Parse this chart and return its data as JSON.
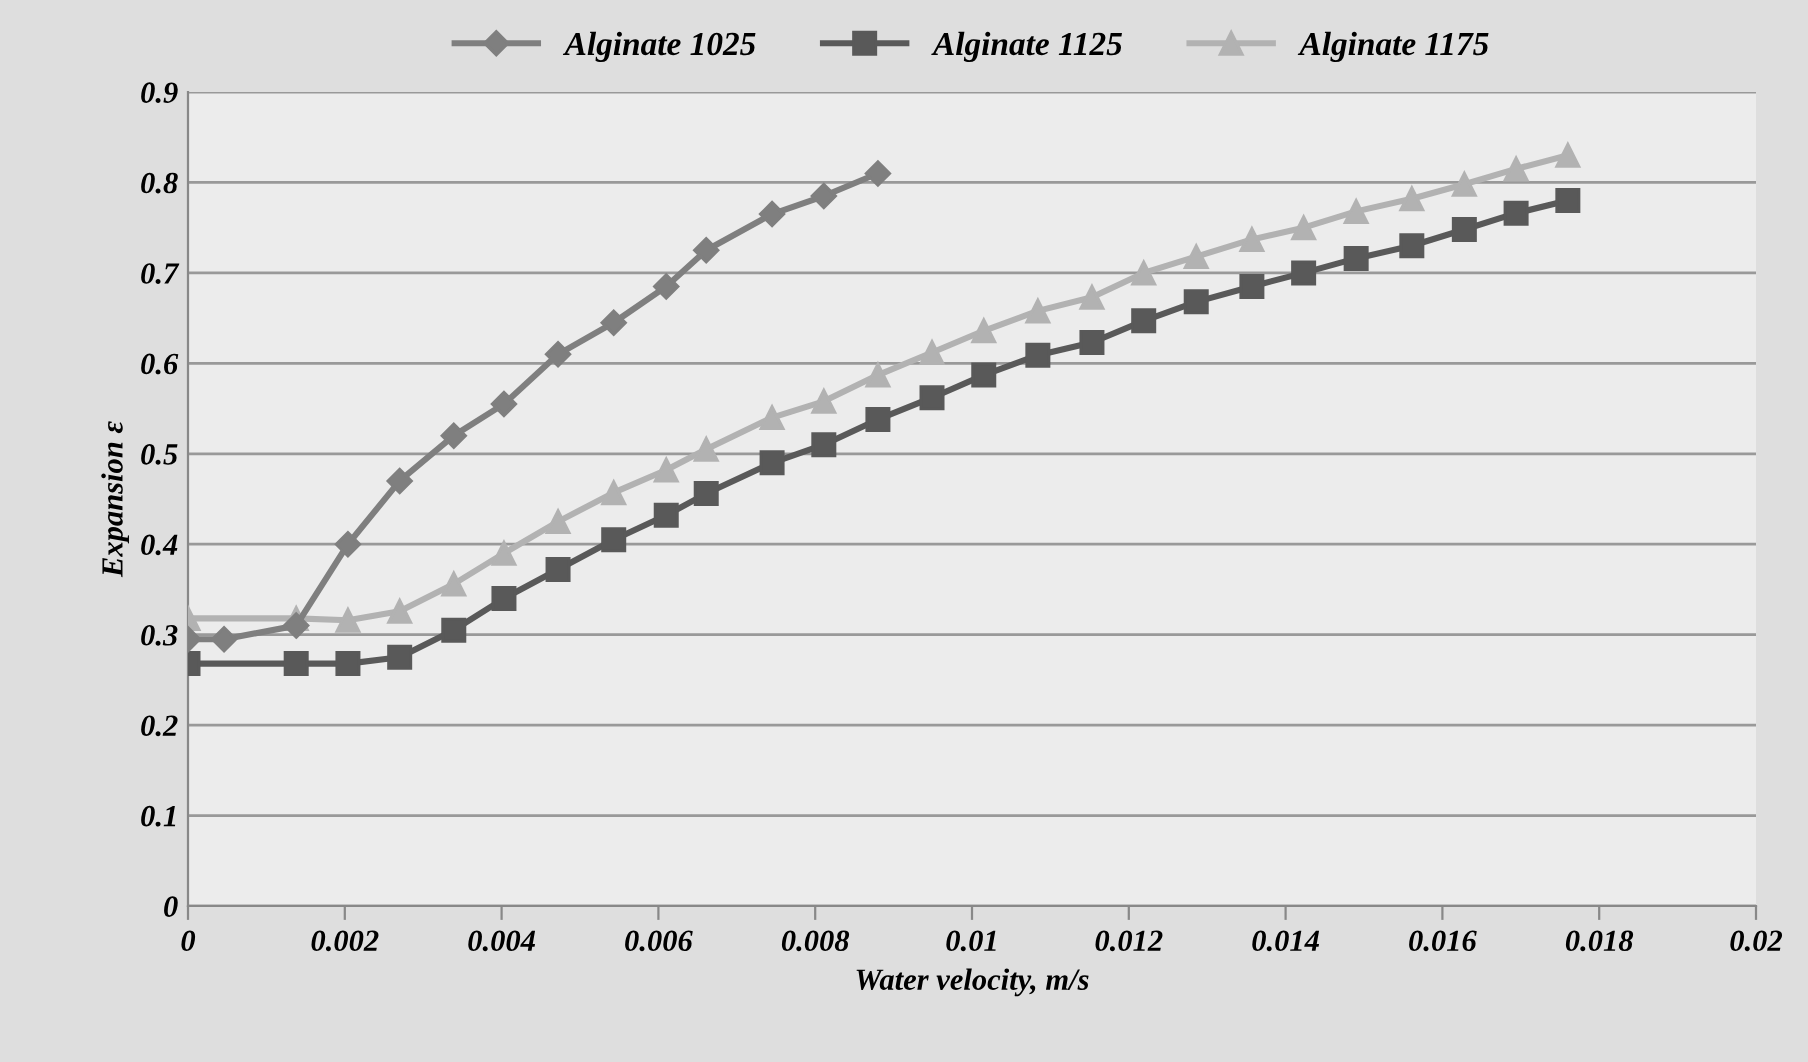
{
  "chart_data": {
    "type": "line",
    "xlabel": "Water velocity, m/s",
    "ylabel": "Expansion ε",
    "xlim": [
      0,
      0.02
    ],
    "xticks": [
      0,
      0.002,
      0.004,
      0.006,
      0.008,
      0.01,
      0.012,
      0.014,
      0.016,
      0.018,
      0.02
    ],
    "ylim": [
      0,
      0.9
    ],
    "yticks": [
      0,
      0.1,
      0.2,
      0.3,
      0.4,
      0.5,
      0.6,
      0.7,
      0.8,
      0.9
    ],
    "grid": "y",
    "legend": "top",
    "line_style": "solid",
    "series": [
      {
        "name": "Alginate 1025",
        "color": "#7f7f7f",
        "marker": "diamond",
        "x": [
          0,
          0.00046,
          0.00138,
          0.00204,
          0.0027,
          0.00339,
          0.00403,
          0.00472,
          0.00543,
          0.0061,
          0.00661,
          0.00745,
          0.00811,
          0.0088
        ],
        "values": [
          0.295,
          0.295,
          0.31,
          0.4,
          0.47,
          0.52,
          0.555,
          0.61,
          0.645,
          0.685,
          0.725,
          0.765,
          0.785,
          0.81
        ]
      },
      {
        "name": "Alginate 1125",
        "color": "#595959",
        "marker": "square",
        "x": [
          0,
          0.00138,
          0.00204,
          0.0027,
          0.00339,
          0.00403,
          0.00472,
          0.00543,
          0.0061,
          0.00661,
          0.00745,
          0.00811,
          0.0088,
          0.00949,
          0.01015,
          0.01084,
          0.01153,
          0.01219,
          0.01286,
          0.01357,
          0.01423,
          0.0149,
          0.01561,
          0.01628,
          0.01694,
          0.0176
        ],
        "values": [
          0.268,
          0.268,
          0.268,
          0.275,
          0.305,
          0.34,
          0.372,
          0.405,
          0.432,
          0.456,
          0.49,
          0.51,
          0.538,
          0.562,
          0.587,
          0.609,
          0.623,
          0.647,
          0.668,
          0.685,
          0.7,
          0.716,
          0.73,
          0.748,
          0.766,
          0.78
        ]
      },
      {
        "name": "Alginate 1175",
        "color": "#b2b2b2",
        "marker": "triangle",
        "x": [
          0,
          0.00138,
          0.00204,
          0.0027,
          0.00339,
          0.00403,
          0.00472,
          0.00543,
          0.0061,
          0.00661,
          0.00745,
          0.00811,
          0.0088,
          0.00949,
          0.01015,
          0.01084,
          0.01153,
          0.01219,
          0.01286,
          0.01357,
          0.01423,
          0.0149,
          0.01561,
          0.01628,
          0.01694,
          0.0176
        ],
        "values": [
          0.318,
          0.318,
          0.316,
          0.326,
          0.356,
          0.39,
          0.425,
          0.457,
          0.482,
          0.505,
          0.54,
          0.558,
          0.587,
          0.612,
          0.636,
          0.658,
          0.673,
          0.7,
          0.718,
          0.737,
          0.75,
          0.768,
          0.782,
          0.798,
          0.815,
          0.83
        ]
      }
    ]
  }
}
